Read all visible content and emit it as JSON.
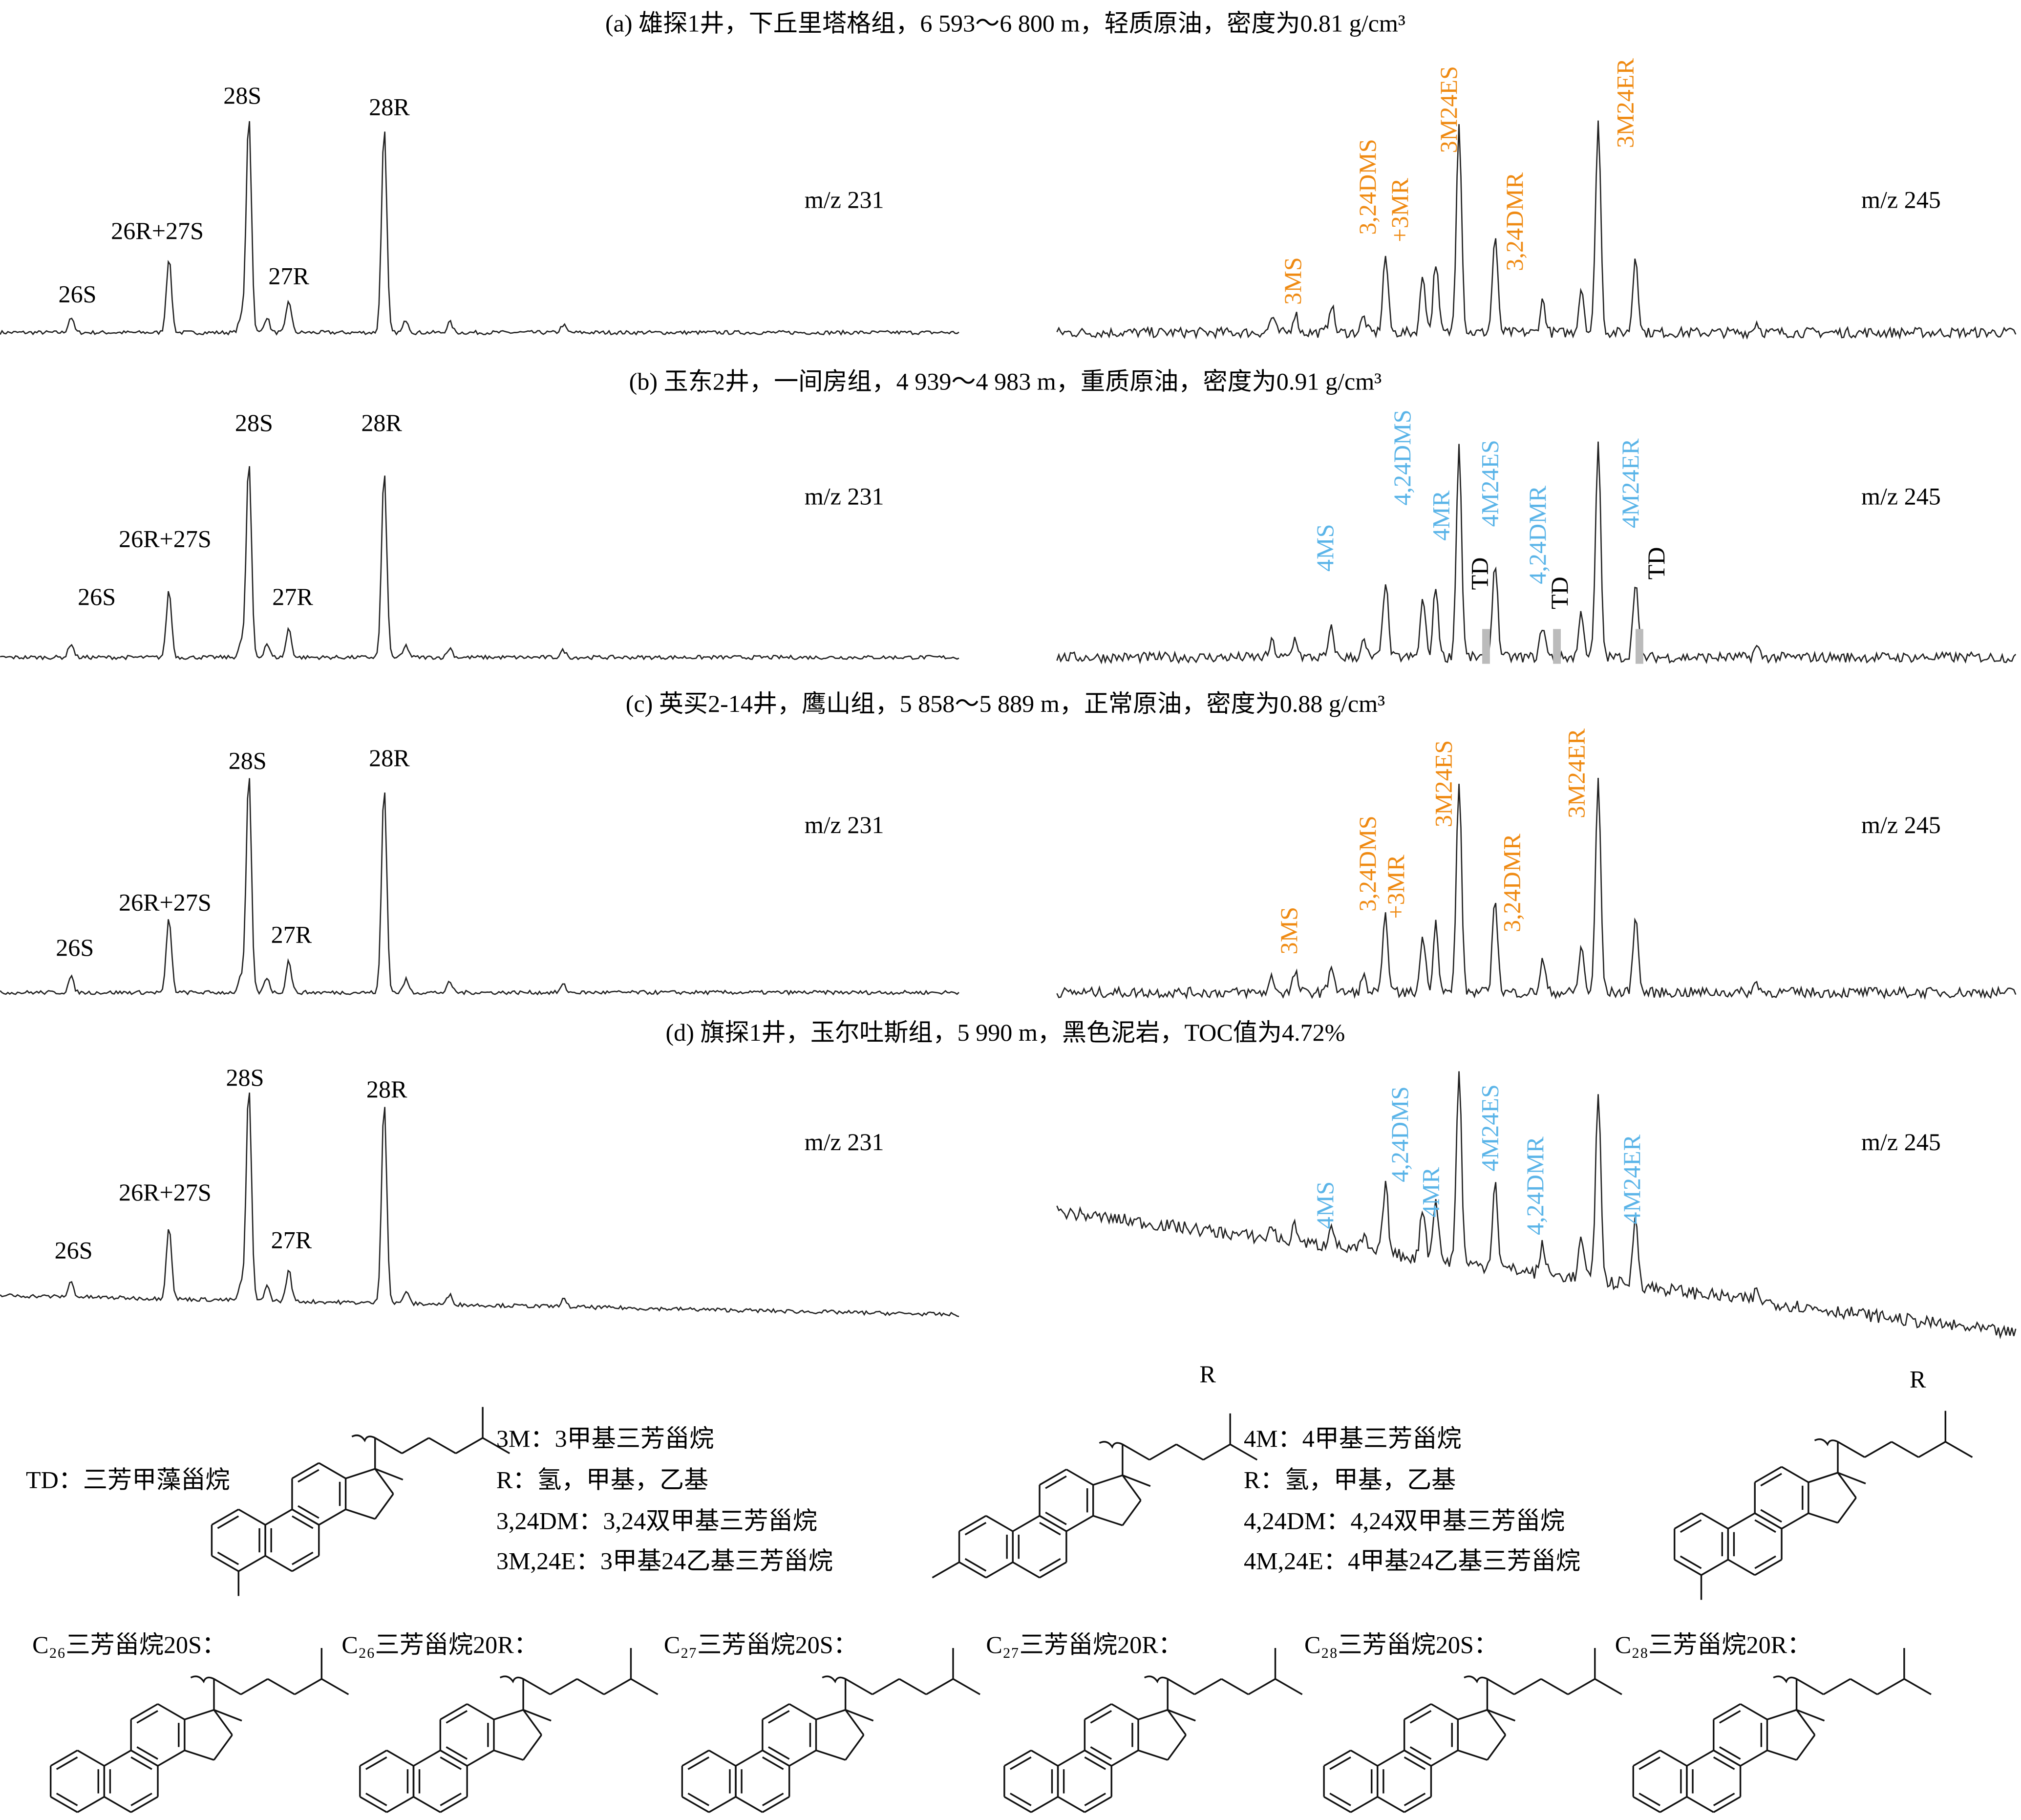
{
  "panels": [
    {
      "title": "(a) 雄探1井，下丘里塔格组，6 593～6 800 m，轻质原油，密度为0.81 g/cm³",
      "left": {
        "mz": "m/z 231",
        "peaks": [
          "26S",
          "26R+27S",
          "28S",
          "27R",
          "28R"
        ]
      },
      "right": {
        "mz": "m/z 245",
        "peaks": [
          "3MS",
          "3,24DMS",
          "+3MR",
          "3M24ES",
          "3,24DMR",
          "3M24ER"
        ]
      }
    },
    {
      "title": "(b) 玉东2井，一间房组，4 939～4 983 m，重质原油，密度为0.91 g/cm³",
      "left": {
        "mz": "m/z 231",
        "peaks": [
          "26S",
          "26R+27S",
          "28S",
          "27R",
          "28R"
        ]
      },
      "right": {
        "mz": "m/z 245",
        "peaks": [
          "4MS",
          "4,24DMS",
          "4MR",
          "TD",
          "4M24ES",
          "4,24DMR",
          "TD",
          "4M24ER",
          "TD"
        ]
      }
    },
    {
      "title": "(c) 英买2-14井，鹰山组，5 858～5 889 m，正常原油，密度为0.88 g/cm³",
      "left": {
        "mz": "m/z 231",
        "peaks": [
          "26S",
          "26R+27S",
          "28S",
          "27R",
          "28R"
        ]
      },
      "right": {
        "mz": "m/z 245",
        "peaks": [
          "3MS",
          "3,24DMS",
          "+3MR",
          "3M24ES",
          "3,24DMR",
          "3M24ER"
        ]
      }
    },
    {
      "title": "(d) 旗探1井，玉尔吐斯组，5 990 m，黑色泥岩，TOC值为4.72%",
      "left": {
        "mz": "m/z 231",
        "peaks": [
          "26S",
          "26R+27S",
          "28S",
          "27R",
          "28R"
        ]
      },
      "right": {
        "mz": "m/z 245",
        "peaks": [
          "4MS",
          "4,24DMS",
          "4MR",
          "4M24ES",
          "4,24DMR",
          "4M24ER"
        ]
      }
    }
  ],
  "legend": {
    "td": "TD：三芳甲藻甾烷",
    "group3": [
      "3M：3甲基三芳甾烷",
      "R：氢，甲基，乙基",
      "3,24DM：3,24双甲基三芳甾烷",
      "3M,24E：3甲基24乙基三芳甾烷"
    ],
    "group4": [
      "4M：4甲基三芳甾烷",
      "R：氢，甲基，乙基",
      "4,24DM：4,24双甲基三芳甾烷",
      "4M,24E：4甲基24乙基三芳甾烷"
    ],
    "r_labels": [
      "R",
      "R"
    ]
  },
  "structures": [
    "C₂₆三芳甾烷20S：",
    "C₂₆三芳甾烷20R：",
    "C₂₇三芳甾烷20S：",
    "C₂₇三芳甾烷20R：",
    "C₂₈三芳甾烷20S：",
    "C₂₈三芳甾烷20R："
  ]
}
